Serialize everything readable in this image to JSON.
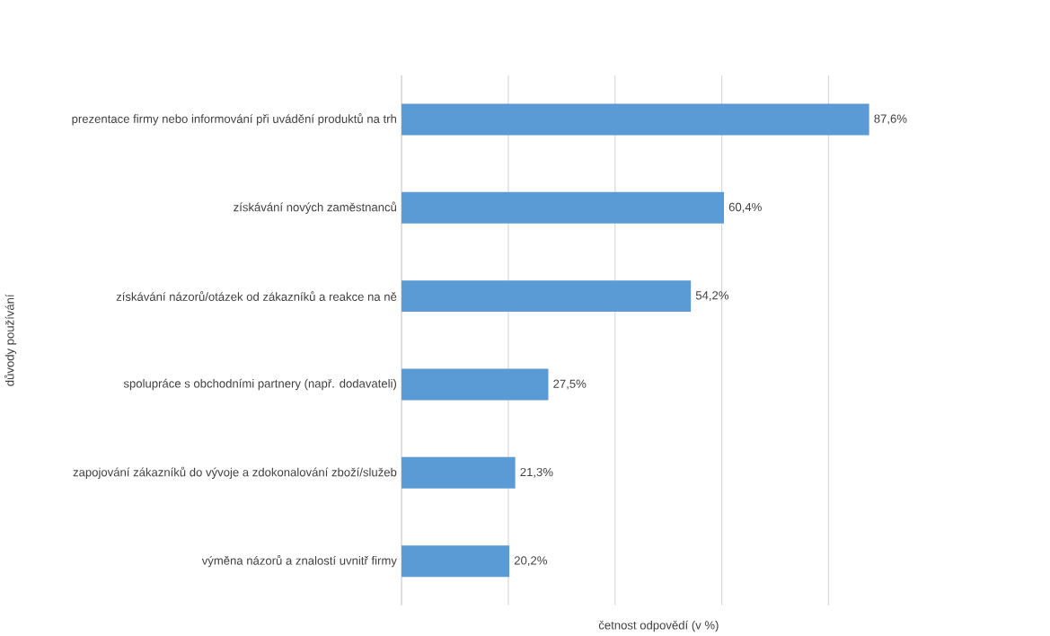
{
  "chart_data": {
    "type": "bar",
    "orientation": "horizontal",
    "xlabel": "četnost odpovědí (v %)",
    "ylabel": "důvody používání",
    "categories": [
      "prezentace firmy nebo informování při uvádění produktů na trh",
      "získávání nových zaměstnanců",
      "získávání názorů/otázek od zákazníků a reakce na ně",
      "spolupráce s obchodními partnery (např. dodavateli)",
      "zapojování zákazníků do vývoje a zdokonalování zboží/služeb",
      "výměna názorů a znalostí uvnitř firmy"
    ],
    "values": [
      87.6,
      60.4,
      54.2,
      27.5,
      21.3,
      20.2
    ],
    "value_labels": [
      "87,6%",
      "60,4%",
      "54,2%",
      "27,5%",
      "21,3%",
      "20,2%"
    ],
    "color": "#5b9bd5",
    "grid": "x",
    "tick_labels": "y"
  }
}
